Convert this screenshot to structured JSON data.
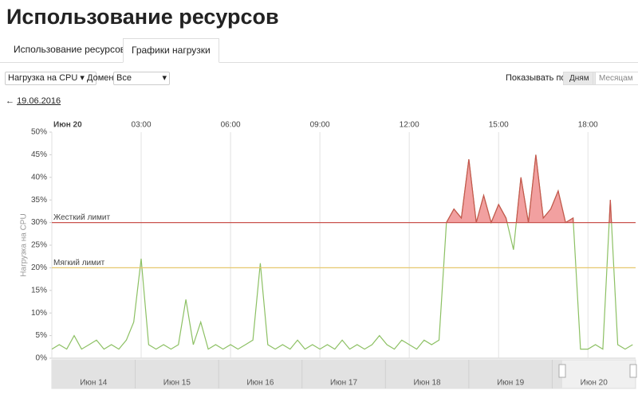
{
  "header": {
    "title": "Использование ресурсов"
  },
  "tabs": [
    "Использование ресурсов",
    "Графики нагрузки"
  ],
  "filters": {
    "metric": "Нагрузка на CPU",
    "domain_label": "Домен",
    "domain": "Все",
    "show_by_label": "Показывать по",
    "show_by": [
      "Дням",
      "Месяцам"
    ]
  },
  "back_link": {
    "arrow": "←",
    "date": "19.06.2016"
  },
  "navigator": {
    "labels": [
      "Июн 14",
      "Июн 15",
      "Июн 16",
      "Июн 17",
      "Июн 18",
      "Июн 19",
      "Июн 20"
    ]
  },
  "chart_data": {
    "type": "line",
    "y_label": "Нагрузка на CPU",
    "xlim": [
      0,
      19.6
    ],
    "xticks": [
      {
        "value": 0,
        "label": "Июн 20"
      },
      {
        "value": 3,
        "label": "03:00"
      },
      {
        "value": 6,
        "label": "06:00"
      },
      {
        "value": 9,
        "label": "09:00"
      },
      {
        "value": 12,
        "label": "12:00"
      },
      {
        "value": 15,
        "label": "15:00"
      },
      {
        "value": 18,
        "label": "18:00"
      }
    ],
    "ylim": [
      0,
      50
    ],
    "yticks": [
      {
        "value": 0,
        "label": "0%"
      },
      {
        "value": 5,
        "label": "5%"
      },
      {
        "value": 10,
        "label": "10%"
      },
      {
        "value": 15,
        "label": "15%"
      },
      {
        "value": 20,
        "label": "20%"
      },
      {
        "value": 25,
        "label": "25%"
      },
      {
        "value": 30,
        "label": "30%"
      },
      {
        "value": 35,
        "label": "35%"
      },
      {
        "value": 40,
        "label": "40%"
      },
      {
        "value": 45,
        "label": "45%"
      },
      {
        "value": 50,
        "label": "50%"
      }
    ],
    "grid": "x",
    "limits": [
      {
        "label": "Жесткий лимит",
        "value": 30,
        "color": "#c9524e",
        "fill": "#f2a0a0"
      },
      {
        "label": "Мягкий лимит",
        "value": 20,
        "color": "#e6c86e"
      }
    ],
    "x": [
      0,
      0.25,
      0.5,
      0.75,
      1,
      1.25,
      1.5,
      1.75,
      2,
      2.25,
      2.5,
      2.75,
      3,
      3.25,
      3.5,
      3.75,
      4,
      4.25,
      4.5,
      4.75,
      5,
      5.25,
      5.5,
      5.75,
      6,
      6.25,
      6.5,
      6.75,
      7,
      7.25,
      7.5,
      7.75,
      8,
      8.25,
      8.5,
      8.75,
      9,
      9.25,
      9.5,
      9.75,
      10,
      10.25,
      10.5,
      10.75,
      11,
      11.25,
      11.5,
      11.75,
      12,
      12.25,
      12.5,
      12.75,
      13,
      13.25,
      13.5,
      13.75,
      14,
      14.25,
      14.5,
      14.75,
      15,
      15.25,
      15.5,
      15.75,
      16,
      16.25,
      16.5,
      16.75,
      17,
      17.25,
      17.5,
      17.75,
      18,
      18.25,
      18.5,
      18.75,
      19,
      19.25,
      19.5
    ],
    "series": [
      {
        "name": "Нагрузка на CPU",
        "color": "#8cc063",
        "values": [
          2,
          3,
          2,
          5,
          2,
          3,
          4,
          2,
          3,
          2,
          4,
          8,
          22,
          3,
          2,
          3,
          2,
          3,
          13,
          3,
          8,
          2,
          3,
          2,
          3,
          2,
          3,
          4,
          21,
          3,
          2,
          3,
          2,
          4,
          2,
          3,
          2,
          3,
          2,
          4,
          2,
          3,
          2,
          3,
          5,
          3,
          2,
          4,
          3,
          2,
          4,
          3,
          4,
          30,
          33,
          31,
          44,
          30,
          36,
          30,
          34,
          31,
          24,
          40,
          30,
          45,
          31,
          33,
          37,
          30,
          31,
          2,
          2,
          3,
          2,
          35,
          3,
          2,
          3
        ]
      }
    ]
  }
}
